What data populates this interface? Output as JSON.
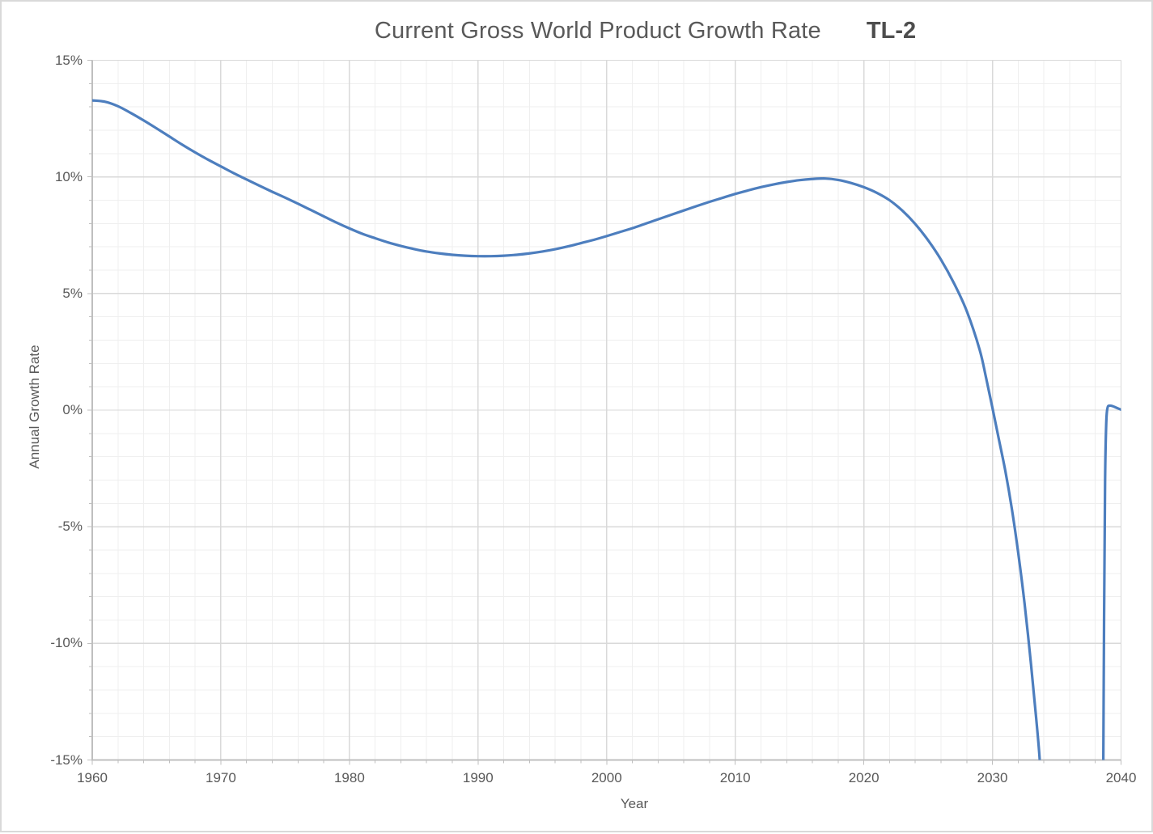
{
  "title": {
    "main": "Current Gross World Product Growth Rate",
    "badge": "TL-2"
  },
  "axes": {
    "x": {
      "label": "Year",
      "min": 1960,
      "max": 2040,
      "minor_step": 2,
      "major_step": 10,
      "tick_labels": [
        "1960",
        "1970",
        "1980",
        "1990",
        "2000",
        "2010",
        "2020",
        "2030",
        "2040"
      ],
      "tick_values": [
        1960,
        1970,
        1980,
        1990,
        2000,
        2010,
        2020,
        2030,
        2040
      ]
    },
    "y": {
      "label": "Annual Growth Rate",
      "min": -15,
      "max": 15,
      "minor_step": 1,
      "major_step": 5,
      "tick_labels": [
        "15%",
        "10%",
        "5%",
        "0%",
        "-5%",
        "-10%",
        "-15%"
      ],
      "tick_values": [
        15,
        10,
        5,
        0,
        -5,
        -10,
        -15
      ]
    }
  },
  "colors": {
    "series_line": "#4d7ebe",
    "grid_minor": "#efefef",
    "grid_major": "#d9d9d9",
    "axis_line": "#bfbfbf",
    "text": "#595959",
    "frame": "#d9d9d9",
    "background": "#ffffff"
  },
  "chart_data": {
    "type": "line",
    "title": "Current Gross World Product Growth Rate  TL-2",
    "xlabel": "Year",
    "ylabel": "Annual Growth Rate",
    "xlim": [
      1960,
      2040
    ],
    "ylim": [
      -15,
      15
    ],
    "y_unit": "percent",
    "grid": "major and minor gridlines on",
    "legend": "none",
    "notes": "Growth rate curve declines from ~13.3% (1960) to a minimum ~6.6% (~1990-1991), rises to a peak ~9.9% (~2017), then collapses past -15% (~2033.7, off-scale), re-entering the plot as a near-vertical spike (~2038.7) that settles just above 0% through 2040.",
    "series": [
      {
        "segments": [
          [
            [
              1960,
              13.28
            ],
            [
              1961,
              13.22
            ],
            [
              1962,
              13.03
            ],
            [
              1963,
              12.74
            ],
            [
              1964,
              12.42
            ],
            [
              1965,
              12.08
            ],
            [
              1966,
              11.73
            ],
            [
              1967,
              11.38
            ],
            [
              1968,
              11.05
            ],
            [
              1969,
              10.74
            ],
            [
              1970,
              10.45
            ],
            [
              1971,
              10.16
            ],
            [
              1972,
              9.89
            ],
            [
              1973,
              9.62
            ],
            [
              1974,
              9.36
            ],
            [
              1975,
              9.11
            ],
            [
              1976,
              8.85
            ],
            [
              1977,
              8.58
            ],
            [
              1978,
              8.31
            ],
            [
              1979,
              8.04
            ],
            [
              1980,
              7.79
            ],
            [
              1981,
              7.56
            ],
            [
              1982,
              7.37
            ],
            [
              1983,
              7.19
            ],
            [
              1984,
              7.04
            ],
            [
              1985,
              6.91
            ],
            [
              1986,
              6.8
            ],
            [
              1987,
              6.72
            ],
            [
              1988,
              6.66
            ],
            [
              1989,
              6.62
            ],
            [
              1990,
              6.6
            ],
            [
              1991,
              6.6
            ],
            [
              1992,
              6.62
            ],
            [
              1993,
              6.66
            ],
            [
              1994,
              6.72
            ],
            [
              1995,
              6.8
            ],
            [
              1996,
              6.9
            ],
            [
              1997,
              7.02
            ],
            [
              1998,
              7.16
            ],
            [
              1999,
              7.3
            ],
            [
              2000,
              7.46
            ],
            [
              2001,
              7.63
            ],
            [
              2002,
              7.8
            ],
            [
              2003,
              7.99
            ],
            [
              2004,
              8.18
            ],
            [
              2005,
              8.37
            ],
            [
              2006,
              8.56
            ],
            [
              2007,
              8.75
            ],
            [
              2008,
              8.93
            ],
            [
              2009,
              9.1
            ],
            [
              2010,
              9.27
            ],
            [
              2011,
              9.42
            ],
            [
              2012,
              9.56
            ],
            [
              2013,
              9.68
            ],
            [
              2014,
              9.78
            ],
            [
              2015,
              9.86
            ],
            [
              2016,
              9.91
            ],
            [
              2017,
              9.93
            ],
            [
              2018,
              9.87
            ],
            [
              2019,
              9.74
            ],
            [
              2020,
              9.56
            ],
            [
              2021,
              9.32
            ],
            [
              2022,
              9.0
            ],
            [
              2023,
              8.55
            ],
            [
              2024,
              7.98
            ],
            [
              2025,
              7.28
            ],
            [
              2026,
              6.45
            ],
            [
              2027,
              5.45
            ],
            [
              2028,
              4.25
            ],
            [
              2029,
              2.6
            ],
            [
              2029.5,
              1.4
            ],
            [
              2030,
              0.1
            ],
            [
              2030.5,
              -1.25
            ],
            [
              2031,
              -2.6
            ],
            [
              2031.5,
              -4.2
            ],
            [
              2032,
              -6.1
            ],
            [
              2032.5,
              -8.3
            ],
            [
              2033,
              -10.9
            ],
            [
              2033.4,
              -13.2
            ],
            [
              2033.7,
              -15.2
            ],
            [
              2033.85,
              -17.5
            ]
          ],
          [
            [
              2038.6,
              -17.5
            ],
            [
              2038.68,
              -9.0
            ],
            [
              2038.76,
              -3.0
            ],
            [
              2038.85,
              -0.55
            ],
            [
              2038.95,
              0.1
            ],
            [
              2039.1,
              0.19
            ],
            [
              2039.35,
              0.17
            ],
            [
              2039.65,
              0.1
            ],
            [
              2040,
              0.02
            ]
          ]
        ]
      }
    ]
  }
}
